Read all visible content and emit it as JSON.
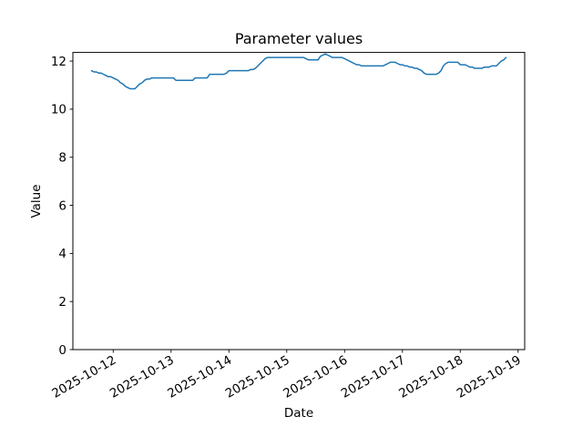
{
  "figure": {
    "title": "Parameter values",
    "xlabel": "Date",
    "ylabel": "Value",
    "background_color": "#ffffff",
    "text_color": "#000000"
  },
  "chart_data": {
    "type": "line",
    "title": "Parameter values",
    "xlabel": "Date",
    "ylabel": "Value",
    "line_color": "#1f77b4",
    "grid": false,
    "legend": null,
    "x_start": "2025-10-11 15:00",
    "x_step_hours": 1,
    "values": [
      11.6,
      11.55,
      11.55,
      11.5,
      11.5,
      11.45,
      11.4,
      11.35,
      11.35,
      11.3,
      11.25,
      11.2,
      11.1,
      11.05,
      10.95,
      10.9,
      10.85,
      10.85,
      10.85,
      10.95,
      11.05,
      11.1,
      11.2,
      11.25,
      11.25,
      11.3,
      11.3,
      11.3,
      11.3,
      11.3,
      11.3,
      11.3,
      11.3,
      11.3,
      11.3,
      11.2,
      11.2,
      11.2,
      11.2,
      11.2,
      11.2,
      11.2,
      11.2,
      11.3,
      11.3,
      11.3,
      11.3,
      11.3,
      11.3,
      11.45,
      11.45,
      11.45,
      11.45,
      11.45,
      11.45,
      11.45,
      11.5,
      11.6,
      11.6,
      11.6,
      11.6,
      11.6,
      11.6,
      11.6,
      11.6,
      11.6,
      11.65,
      11.65,
      11.7,
      11.8,
      11.9,
      12.0,
      12.1,
      12.15,
      12.15,
      12.15,
      12.15,
      12.15,
      12.15,
      12.15,
      12.15,
      12.15,
      12.15,
      12.15,
      12.15,
      12.15,
      12.15,
      12.15,
      12.15,
      12.1,
      12.05,
      12.05,
      12.05,
      12.05,
      12.05,
      12.2,
      12.25,
      12.3,
      12.25,
      12.2,
      12.15,
      12.15,
      12.15,
      12.15,
      12.15,
      12.1,
      12.05,
      12.0,
      11.95,
      11.9,
      11.85,
      11.85,
      11.8,
      11.8,
      11.8,
      11.8,
      11.8,
      11.8,
      11.8,
      11.8,
      11.8,
      11.8,
      11.85,
      11.9,
      11.95,
      11.95,
      11.95,
      11.9,
      11.85,
      11.85,
      11.8,
      11.8,
      11.75,
      11.75,
      11.7,
      11.7,
      11.65,
      11.6,
      11.5,
      11.45,
      11.45,
      11.45,
      11.45,
      11.45,
      11.5,
      11.6,
      11.8,
      11.9,
      11.95,
      11.95,
      11.95,
      11.95,
      11.95,
      11.85,
      11.85,
      11.85,
      11.8,
      11.75,
      11.75,
      11.7,
      11.7,
      11.7,
      11.7,
      11.75,
      11.75,
      11.75,
      11.8,
      11.8,
      11.8,
      11.9,
      12.0,
      12.05,
      12.15
    ],
    "ylim": [
      0,
      12.36
    ],
    "yticks": [
      0,
      2,
      4,
      6,
      8,
      10,
      12
    ],
    "xlim_hours": [
      -7.74,
      179.74
    ],
    "xticks": [
      {
        "label": "2025-10-12",
        "h": 9
      },
      {
        "label": "2025-10-13",
        "h": 33
      },
      {
        "label": "2025-10-14",
        "h": 57
      },
      {
        "label": "2025-10-15",
        "h": 81
      },
      {
        "label": "2025-10-16",
        "h": 105
      },
      {
        "label": "2025-10-17",
        "h": 129
      },
      {
        "label": "2025-10-18",
        "h": 153
      },
      {
        "label": "2025-10-19",
        "h": 177
      }
    ]
  }
}
